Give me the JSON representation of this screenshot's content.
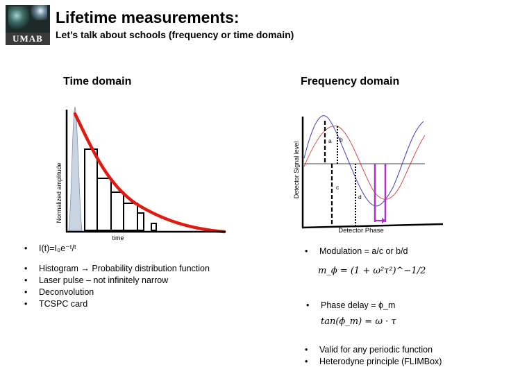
{
  "logo": {
    "text": "UMAB"
  },
  "header": {
    "title": "Lifetime measurements:",
    "subtitle": "Let’s talk about schools (frequency or time domain)"
  },
  "time_domain": {
    "heading": "Time domain",
    "ylabel": "Normalized amplitude",
    "xlabel": "time",
    "bullets": [
      "I(t)=I₀e⁻ᵗ/ᵗ",
      "Histogram → Probability distribution function",
      "Laser pulse – not infinitely narrow",
      "Deconvolution",
      "TCSPC card"
    ]
  },
  "frequency_domain": {
    "heading": "Frequency domain",
    "ylabel": "Detector Signal level",
    "xlabel": "Detector Phase",
    "labels": {
      "a": "a",
      "b": "b",
      "c": "c",
      "d": "d"
    },
    "bullet_modulation": "Modulation = a/c or b/d",
    "formula_modulation": "m_ϕ = (1 + ω²τ²)^−1/2",
    "bullet_phase": "Phase delay = ϕ_m",
    "formula_phase": "tan(ϕ_m) = ω · τ",
    "bullets_bottom": [
      "Valid for any periodic function",
      "Heterodyne principle (FLIMBox)"
    ]
  },
  "colors": {
    "decay_curve": "#e01a12",
    "pulse_fill": "#c9d4e3",
    "blue_wave": "#3b3bc8",
    "red_wave": "#d94a4a",
    "phase_marker": "#a933c9"
  }
}
